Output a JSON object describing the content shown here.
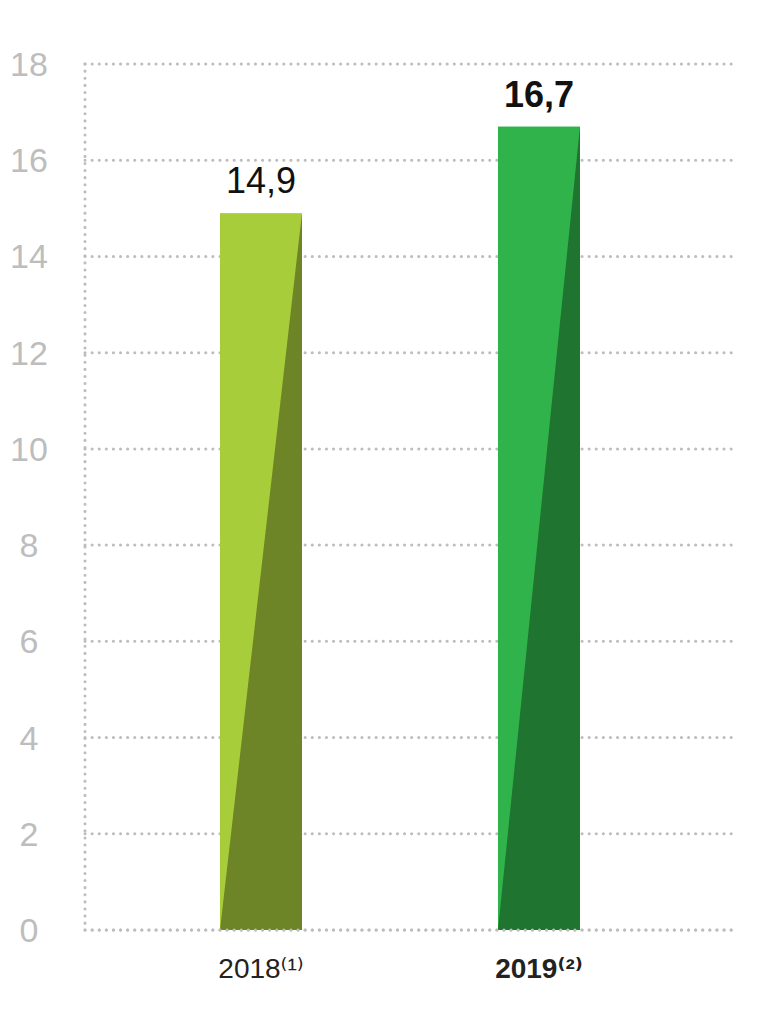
{
  "chart_data": {
    "type": "bar",
    "categories": [
      "2018⁽¹⁾",
      "2019⁽²⁾"
    ],
    "values": [
      14.9,
      16.7
    ],
    "value_labels": [
      "14,9",
      "16,7"
    ],
    "colors": [
      "#a8cd3a",
      "#2fb34a"
    ],
    "ylim": [
      0,
      18
    ],
    "yticks": [
      0,
      2,
      4,
      6,
      8,
      10,
      12,
      14,
      16,
      18
    ],
    "grid": true,
    "data_labels": true
  }
}
